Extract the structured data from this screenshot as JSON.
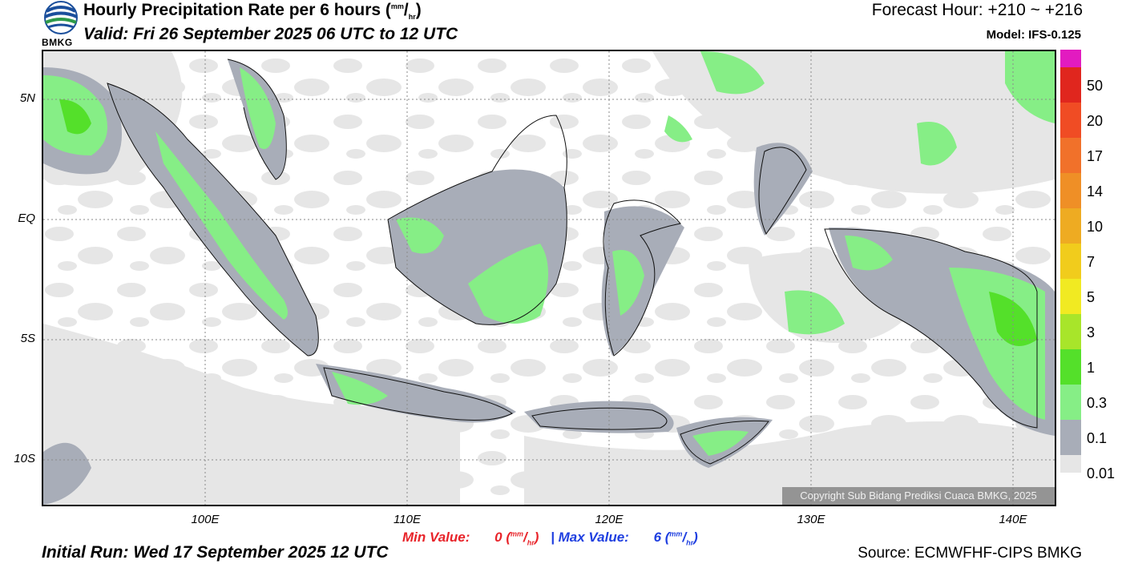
{
  "header": {
    "title": "Hourly Precipitation Rate per 6 hours (",
    "title_unit_top": "mm",
    "title_unit_bottom": "hr",
    "title_close": ")",
    "valid": "Valid: Fri 26 September 2025 06 UTC to 12 UTC",
    "forecast_hour": "Forecast Hour: +210 ~ +216",
    "model": "Model: IFS-0.125"
  },
  "logo": {
    "text": "BMKG",
    "icon": "bmkg-logo-icon"
  },
  "axes": {
    "y_labels": [
      "5N",
      "EQ",
      "5S",
      "10S"
    ],
    "x_labels": [
      "100E",
      "110E",
      "120E",
      "130E",
      "140E"
    ],
    "lon_range": [
      92,
      142
    ],
    "lat_range": [
      -12,
      7
    ]
  },
  "colorbar": {
    "labels": [
      "50",
      "20",
      "17",
      "14",
      "10",
      "7",
      "5",
      "3",
      "1",
      "0.3",
      "0.1",
      "0.01"
    ],
    "colors": [
      "#e21bc0",
      "#e0261e",
      "#f04c24",
      "#f1712a",
      "#ef8f26",
      "#eeab22",
      "#f1cc1c",
      "#f1ea22",
      "#a8e52a",
      "#54e02a",
      "#86ee86",
      "#a8adb8",
      "#e6e6e6"
    ]
  },
  "stats": {
    "min_label": "Min Value:",
    "min_value": "0",
    "max_label": "Max Value:",
    "max_value": "6",
    "separator": "|",
    "unit_top": "mm",
    "unit_bottom": "hr",
    "min_color": "#e8242a",
    "max_color": "#1f3fe0"
  },
  "footer": {
    "initial_run": "Initial Run: Wed 17 September 2025 12 UTC",
    "source": "Source: ECMWFHF-CIPS BMKG",
    "copyright": "Copyright Sub Bidang Prediksi Cuaca BMKG, 2025"
  }
}
